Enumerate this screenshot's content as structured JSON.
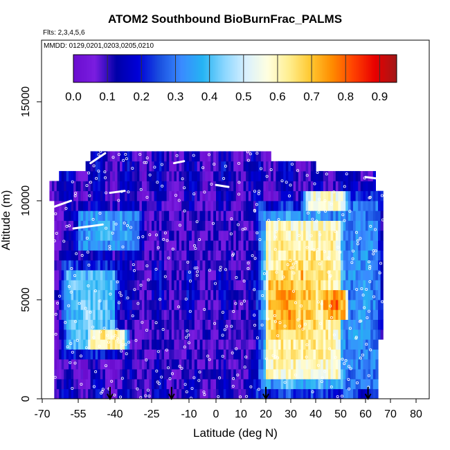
{
  "chart_data": {
    "type": "heatmap",
    "title": "ATOM2 Southbound BioBurnFrac_PALMS",
    "flights_note": "Flts: 2,3,4,5,6",
    "dates_note": "MMDD: 0129,0201,0203,0205,0210",
    "xlabel": "Latitude (deg N)",
    "ylabel": "Altitude (m)",
    "xlim": [
      -70,
      80
    ],
    "ylim": [
      0,
      17500
    ],
    "x_tick_labels": [
      "-70",
      "-55",
      "-40",
      "-25",
      "-10",
      "0",
      "10",
      "20",
      "30",
      "40",
      "50",
      "60",
      "70",
      "80"
    ],
    "y_tick_labels": [
      "0",
      "5000",
      "10000",
      "15000"
    ],
    "colorbar": {
      "range": [
        0,
        0.95
      ],
      "tick_labels": [
        "0.0",
        "0.1",
        "0.2",
        "0.3",
        "0.4",
        "0.5",
        "0.6",
        "0.7",
        "0.8",
        "0.9"
      ],
      "colors": [
        "#6a0dcf",
        "#7a1de0",
        "#0000a8",
        "#0000d8",
        "#1a50e0",
        "#3a8aff",
        "#25b4f2",
        "#8ad6ff",
        "#d8f0ff",
        "#ffffe0",
        "#ffee90",
        "#ffc830",
        "#ff8c00",
        "#ff4000",
        "#e80000",
        "#a01818"
      ]
    },
    "altitude_bands_m": [
      0,
      500,
      1000,
      1500,
      2000,
      2500,
      3000,
      3500,
      4000,
      4500,
      5000,
      5500,
      6000,
      6500,
      7000,
      7500,
      8000,
      8500,
      9000,
      9500,
      10000,
      10500,
      11000,
      11500,
      12000
    ],
    "latitude_extent_per_band": [
      [
        -65,
        65
      ],
      [
        -65,
        65
      ],
      [
        -65,
        65
      ],
      [
        -65,
        65
      ],
      [
        -65,
        65
      ],
      [
        -65,
        65
      ],
      [
        -65,
        67
      ],
      [
        -65,
        67
      ],
      [
        -65,
        67
      ],
      [
        -65,
        67
      ],
      [
        -65,
        67
      ],
      [
        -65,
        67
      ],
      [
        -65,
        67
      ],
      [
        -65,
        67
      ],
      [
        -65,
        67
      ],
      [
        -65,
        67
      ],
      [
        -65,
        67
      ],
      [
        -65,
        67
      ],
      [
        -65,
        67
      ],
      [
        -65,
        67
      ],
      [
        -67,
        67
      ],
      [
        -67,
        64
      ],
      [
        -63,
        64
      ],
      [
        -52,
        40
      ],
      [
        -50,
        22
      ]
    ],
    "biomass_burning_fraction_features": [
      {
        "lat_range": [
          20,
          50
        ],
        "alt_range_m": [
          1000,
          9000
        ],
        "level": 0.7
      },
      {
        "lat_range": [
          22,
          34
        ],
        "alt_range_m": [
          3000,
          6500
        ],
        "level": 0.78
      },
      {
        "lat_range": [
          44,
          52
        ],
        "alt_range_m": [
          4000,
          5500
        ],
        "level": 0.82
      },
      {
        "lat_range": [
          36,
          52
        ],
        "alt_range_m": [
          9500,
          10500
        ],
        "level": 0.62
      },
      {
        "lat_range": [
          -60,
          -40
        ],
        "alt_range_m": [
          2500,
          6500
        ],
        "level": 0.45
      },
      {
        "lat_range": [
          -50,
          -36
        ],
        "alt_range_m": [
          2500,
          3500
        ],
        "level": 0.68
      },
      {
        "lat_range": [
          -55,
          -30
        ],
        "alt_range_m": [
          7500,
          9500
        ],
        "level": 0.38
      },
      {
        "lat_range": [
          52,
          65
        ],
        "alt_range_m": [
          500,
          10000
        ],
        "level": 0.35
      },
      {
        "lat_range": [
          -30,
          15
        ],
        "alt_range_m": [
          500,
          9500
        ],
        "level": 0.1
      },
      {
        "lat_range": [
          -52,
          25
        ],
        "alt_range_m": [
          10500,
          12500
        ],
        "level": 0.05
      }
    ],
    "profile_start_latitudes": [
      -42,
      -17,
      20,
      61
    ],
    "grid": false,
    "legend": "colorbar top"
  }
}
